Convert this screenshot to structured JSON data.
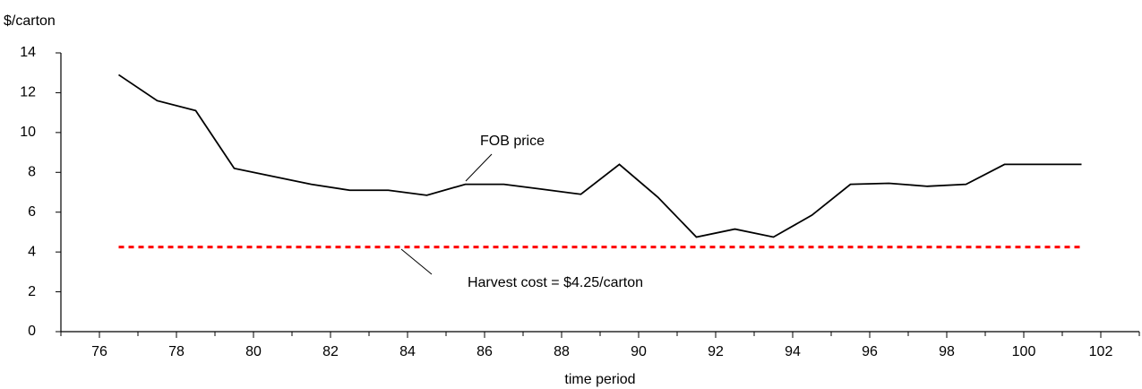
{
  "chart_data": {
    "type": "line",
    "y_label": "$/carton",
    "x_label": "time period",
    "xlim": [
      75,
      103
    ],
    "xticks": [
      76,
      78,
      80,
      82,
      84,
      86,
      88,
      90,
      92,
      94,
      96,
      98,
      100,
      102
    ],
    "xminor_ticks": [
      75,
      77,
      79,
      81,
      83,
      85,
      87,
      89,
      91,
      93,
      95,
      97,
      99,
      101,
      103
    ],
    "ylim": [
      0,
      14
    ],
    "yticks": [
      0,
      2,
      4,
      6,
      8,
      10,
      12,
      14
    ],
    "grid": false,
    "series": [
      {
        "name": "FOB price",
        "color": "#000000",
        "dashed": false,
        "x": [
          76.5,
          77.5,
          78.5,
          79.5,
          80.5,
          81.5,
          82.5,
          83.5,
          84.5,
          85.5,
          86.5,
          87.5,
          88.5,
          89.5,
          90.5,
          91.5,
          92.5,
          93.5,
          94.5,
          95.5,
          96.5,
          97.5,
          98.5,
          99.5,
          100.5,
          101.5
        ],
        "values": [
          12.9,
          11.6,
          11.1,
          8.2,
          7.8,
          7.4,
          7.1,
          7.1,
          6.85,
          7.4,
          7.4,
          7.15,
          6.9,
          8.4,
          6.75,
          4.75,
          5.15,
          4.75,
          5.85,
          7.4,
          7.45,
          7.3,
          7.4,
          8.4,
          8.4,
          8.4
        ]
      },
      {
        "name": "Harvest cost = $4.25/carton",
        "color": "#ff0000",
        "dashed": true,
        "x": [
          76.5,
          101.5
        ],
        "values": [
          4.25,
          4.25
        ]
      }
    ]
  }
}
